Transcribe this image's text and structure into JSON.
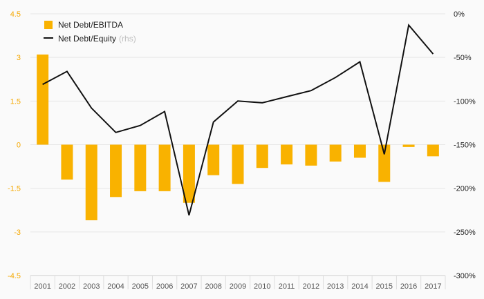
{
  "chart_data": {
    "type": "bar+line",
    "categories": [
      "2001",
      "2002",
      "2003",
      "2004",
      "2005",
      "2006",
      "2007",
      "2008",
      "2009",
      "2010",
      "2011",
      "2012",
      "2013",
      "2014",
      "2015",
      "2016",
      "2017"
    ],
    "series": [
      {
        "name": "Net Debt/EBITDA",
        "type": "bar",
        "axis": "left",
        "color": "#f9b200",
        "values": [
          3.1,
          -1.2,
          -2.6,
          -1.8,
          -1.6,
          -1.6,
          -2.0,
          -1.05,
          -1.35,
          -0.8,
          -0.68,
          -0.72,
          -0.58,
          -0.45,
          -1.28,
          -0.08,
          -0.4
        ]
      },
      {
        "name": "Net Debt/Equity",
        "type": "line",
        "axis": "right",
        "color": "#111111",
        "values": [
          -81,
          -66,
          -108,
          -136,
          -128,
          -112,
          -231,
          -124,
          -100,
          -102,
          -95,
          -88,
          -73,
          -55,
          -161,
          -13,
          -46
        ]
      }
    ],
    "legend": [
      {
        "label": "Net Debt/EBITDA",
        "note": "",
        "symbol": "bar"
      },
      {
        "label": "Net Debt/Equity",
        "note": "(rhs)",
        "symbol": "line"
      }
    ],
    "left_axis": {
      "min": -4.5,
      "max": 4.5,
      "ticks": [
        "4.5",
        "3",
        "1.5",
        "0",
        "-1.5",
        "-3",
        "-4.5"
      ],
      "tick_values": [
        4.5,
        3,
        1.5,
        0,
        -1.5,
        -3,
        -4.5
      ],
      "color": "#f5a800"
    },
    "right_axis": {
      "min": -300,
      "max": 0,
      "ticks": [
        "0%",
        "-50%",
        "-100%",
        "-150%",
        "-200%",
        "-250%",
        "-300%"
      ],
      "tick_values": [
        0,
        -50,
        -100,
        -150,
        -200,
        -250,
        -300
      ]
    },
    "grid": true,
    "legend_position": "top-left"
  }
}
